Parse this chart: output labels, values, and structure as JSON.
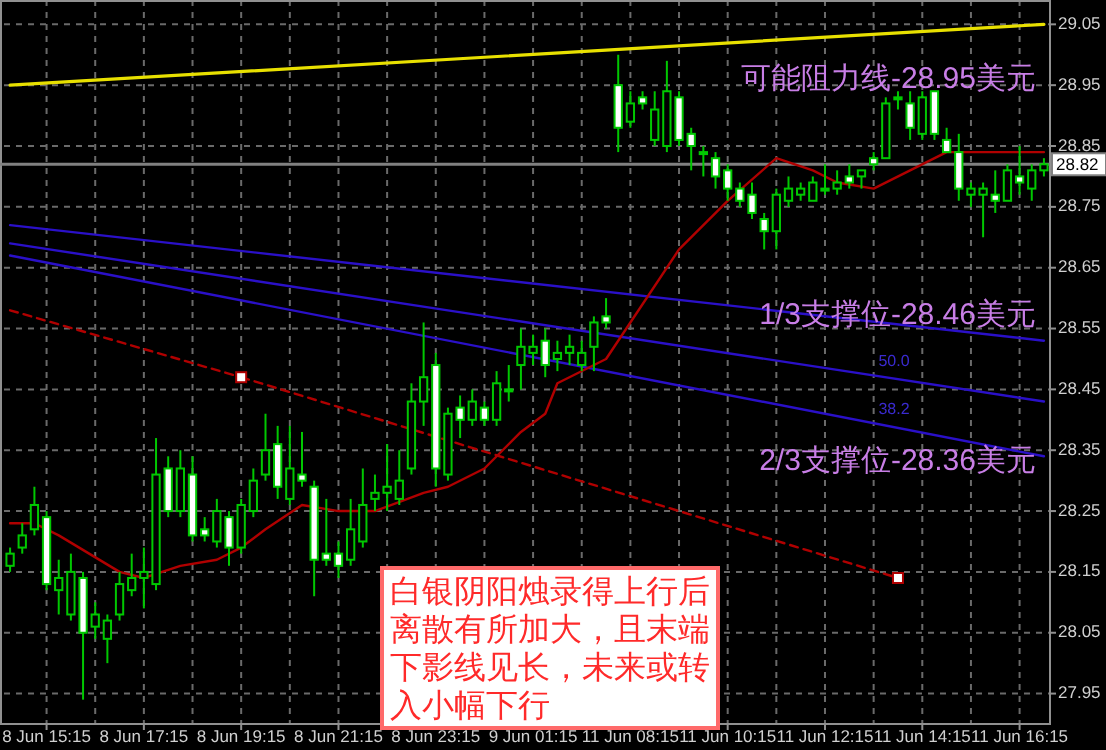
{
  "chart_data": {
    "type": "candlestick",
    "categories": [
      null,
      null,
      null,
      "8 Jun 15:15",
      null,
      null,
      null,
      null,
      null,
      null,
      null,
      "8 Jun 17:15",
      null,
      null,
      null,
      null,
      null,
      null,
      null,
      "8 Jun 19:15",
      null,
      null,
      null,
      null,
      null,
      null,
      null,
      "8 Jun 21:15",
      null,
      null,
      null,
      null,
      null,
      null,
      null,
      "8 Jun 23:15",
      null,
      null,
      null,
      null,
      null,
      null,
      null,
      "9 Jun 01:15",
      null,
      null,
      null,
      null,
      null,
      null,
      null,
      "11 Jun 08:15",
      null,
      null,
      null,
      null,
      null,
      null,
      null,
      "11 Jun 10:15",
      null,
      null,
      null,
      null,
      null,
      null,
      null,
      "11 Jun 12:15",
      null,
      null,
      null,
      null,
      null,
      null,
      null,
      "11 Jun 14:15",
      null,
      null,
      null,
      null,
      null,
      null,
      null,
      "11 Jun 16:15",
      null,
      null
    ],
    "ohlc": [
      [
        28.16,
        28.19,
        28.15,
        28.18
      ],
      [
        28.19,
        28.23,
        28.18,
        28.21
      ],
      [
        28.22,
        28.29,
        28.21,
        28.26
      ],
      [
        28.24,
        28.25,
        28.12,
        28.13
      ],
      [
        28.12,
        28.17,
        28.08,
        28.14
      ],
      [
        28.08,
        28.18,
        28.07,
        28.15
      ],
      [
        28.14,
        28.15,
        27.94,
        28.05
      ],
      [
        28.06,
        28.1,
        28.04,
        28.08
      ],
      [
        28.04,
        28.08,
        28.0,
        28.07
      ],
      [
        28.08,
        28.15,
        28.07,
        28.13
      ],
      [
        28.12,
        28.18,
        28.11,
        28.14
      ],
      [
        28.14,
        28.19,
        28.09,
        28.15
      ],
      [
        28.13,
        28.37,
        28.12,
        28.31
      ],
      [
        28.32,
        28.34,
        28.24,
        28.25
      ],
      [
        28.25,
        28.35,
        28.24,
        28.32
      ],
      [
        28.31,
        28.34,
        28.2,
        28.21
      ],
      [
        28.22,
        28.24,
        28.2,
        28.21
      ],
      [
        28.2,
        28.27,
        28.19,
        28.25
      ],
      [
        28.24,
        28.25,
        28.16,
        28.19
      ],
      [
        28.19,
        28.27,
        28.18,
        28.26
      ],
      [
        28.25,
        28.32,
        28.24,
        28.3
      ],
      [
        28.31,
        28.41,
        28.3,
        28.35
      ],
      [
        28.36,
        28.39,
        28.27,
        28.29
      ],
      [
        28.27,
        28.39,
        28.26,
        28.32
      ],
      [
        28.31,
        28.38,
        28.29,
        28.3
      ],
      [
        28.29,
        28.3,
        28.11,
        28.17
      ],
      [
        28.18,
        28.27,
        28.16,
        28.17
      ],
      [
        28.18,
        28.2,
        28.14,
        28.16
      ],
      [
        28.17,
        28.27,
        28.16,
        28.22
      ],
      [
        28.2,
        28.32,
        28.19,
        28.26
      ],
      [
        28.27,
        28.31,
        28.25,
        28.28
      ],
      [
        28.28,
        28.36,
        28.25,
        28.29
      ],
      [
        28.27,
        28.35,
        28.26,
        28.3
      ],
      [
        28.32,
        28.46,
        28.31,
        28.43
      ],
      [
        28.43,
        28.56,
        28.39,
        28.47
      ],
      [
        28.49,
        28.51,
        28.29,
        28.32
      ],
      [
        28.31,
        28.42,
        28.3,
        28.41
      ],
      [
        28.42,
        28.44,
        28.37,
        28.4
      ],
      [
        28.4,
        28.45,
        28.39,
        28.43
      ],
      [
        28.42,
        28.43,
        28.39,
        28.4
      ],
      [
        28.4,
        28.48,
        28.39,
        28.46
      ],
      [
        28.45,
        28.49,
        28.43,
        28.45
      ],
      [
        28.49,
        28.55,
        28.45,
        28.52
      ],
      [
        28.51,
        28.54,
        28.49,
        28.52
      ],
      [
        28.53,
        28.55,
        28.47,
        28.49
      ],
      [
        28.5,
        28.53,
        28.48,
        28.51
      ],
      [
        28.51,
        28.54,
        28.49,
        28.52
      ],
      [
        28.49,
        28.53,
        28.48,
        28.51
      ],
      [
        28.52,
        28.57,
        28.48,
        28.56
      ],
      [
        28.57,
        28.6,
        28.55,
        28.56
      ],
      [
        28.95,
        29.0,
        28.84,
        28.88
      ],
      [
        28.89,
        28.94,
        28.88,
        28.92
      ],
      [
        28.93,
        28.94,
        28.91,
        28.92
      ],
      [
        28.86,
        28.94,
        28.85,
        28.91
      ],
      [
        28.85,
        28.99,
        28.84,
        28.94
      ],
      [
        28.93,
        28.94,
        28.85,
        28.86
      ],
      [
        28.87,
        28.88,
        28.81,
        28.85
      ],
      [
        28.84,
        28.85,
        28.8,
        28.84
      ],
      [
        28.83,
        28.84,
        28.78,
        28.8
      ],
      [
        28.81,
        28.82,
        28.76,
        28.78
      ],
      [
        28.78,
        28.79,
        28.75,
        28.76
      ],
      [
        28.77,
        28.79,
        28.73,
        28.74
      ],
      [
        28.73,
        28.74,
        28.68,
        28.71
      ],
      [
        28.71,
        28.78,
        28.68,
        28.77
      ],
      [
        28.76,
        28.8,
        28.75,
        28.78
      ],
      [
        28.77,
        28.79,
        28.76,
        28.78
      ],
      [
        28.76,
        28.8,
        28.76,
        28.79
      ],
      [
        28.78,
        28.82,
        28.77,
        28.78
      ],
      [
        28.78,
        28.81,
        28.77,
        28.79
      ],
      [
        28.8,
        28.82,
        28.78,
        28.79
      ],
      [
        28.8,
        28.81,
        28.78,
        28.81
      ],
      [
        28.83,
        28.84,
        28.81,
        28.82
      ],
      [
        28.83,
        28.93,
        28.83,
        28.92
      ],
      [
        28.93,
        28.94,
        28.91,
        28.93
      ],
      [
        28.92,
        28.94,
        28.86,
        28.88
      ],
      [
        28.87,
        28.94,
        28.86,
        28.93
      ],
      [
        28.94,
        28.94,
        28.86,
        28.87
      ],
      [
        28.86,
        28.88,
        28.84,
        28.84
      ],
      [
        28.84,
        28.87,
        28.76,
        28.78
      ],
      [
        28.77,
        28.79,
        28.75,
        28.78
      ],
      [
        28.77,
        28.79,
        28.7,
        28.78
      ],
      [
        28.77,
        28.81,
        28.74,
        28.76
      ],
      [
        28.76,
        28.82,
        28.76,
        28.81
      ],
      [
        28.8,
        28.85,
        28.77,
        28.79
      ],
      [
        28.78,
        28.82,
        28.76,
        28.81
      ],
      [
        28.81,
        28.83,
        28.8,
        28.82
      ]
    ],
    "series": [
      {
        "type": "line",
        "color": "#e8e000",
        "values": [
          28.95,
          null,
          null,
          null,
          null,
          null,
          null,
          null,
          null,
          null,
          null,
          null,
          null,
          null,
          null,
          null,
          null,
          null,
          null,
          null,
          null,
          null,
          null,
          null,
          null,
          null,
          null,
          null,
          null,
          null,
          null,
          null,
          null,
          null,
          null,
          null,
          null,
          null,
          null,
          null,
          null,
          null,
          null,
          null,
          null,
          null,
          null,
          null,
          null,
          null,
          null,
          null,
          null,
          null,
          null,
          null,
          null,
          null,
          null,
          null,
          null,
          null,
          null,
          null,
          null,
          null,
          null,
          null,
          null,
          null,
          null,
          null,
          null,
          null,
          null,
          null,
          null,
          null,
          null,
          null,
          null,
          null,
          null,
          null,
          null,
          29.05
        ]
      },
      {
        "type": "line",
        "color": "#2a10c8",
        "values": [
          28.72,
          null,
          null,
          null,
          null,
          null,
          null,
          null,
          null,
          null,
          null,
          null,
          null,
          null,
          null,
          null,
          null,
          null,
          null,
          null,
          null,
          null,
          null,
          null,
          null,
          null,
          null,
          null,
          null,
          null,
          null,
          null,
          null,
          null,
          null,
          null,
          null,
          null,
          null,
          null,
          null,
          null,
          null,
          null,
          null,
          null,
          null,
          null,
          null,
          null,
          null,
          null,
          null,
          null,
          null,
          null,
          null,
          null,
          null,
          null,
          null,
          null,
          null,
          null,
          null,
          null,
          null,
          null,
          null,
          null,
          null,
          null,
          null,
          null,
          null,
          null,
          null,
          null,
          null,
          null,
          null,
          null,
          null,
          null,
          null,
          28.53
        ]
      },
      {
        "type": "line",
        "color": "#2a10c8",
        "values": [
          28.69,
          null,
          null,
          null,
          null,
          null,
          null,
          null,
          null,
          null,
          null,
          null,
          null,
          null,
          null,
          null,
          null,
          null,
          null,
          null,
          null,
          null,
          null,
          null,
          null,
          null,
          null,
          null,
          null,
          null,
          null,
          null,
          null,
          null,
          null,
          null,
          null,
          null,
          null,
          null,
          null,
          null,
          null,
          null,
          null,
          null,
          null,
          null,
          null,
          null,
          null,
          null,
          null,
          null,
          null,
          null,
          null,
          null,
          null,
          null,
          null,
          null,
          null,
          null,
          null,
          null,
          null,
          null,
          null,
          null,
          null,
          null,
          null,
          null,
          null,
          null,
          null,
          null,
          null,
          null,
          null,
          null,
          null,
          null,
          null,
          28.43
        ]
      },
      {
        "type": "line",
        "color": "#2a10c8",
        "values": [
          28.67,
          null,
          null,
          null,
          null,
          null,
          null,
          null,
          null,
          null,
          null,
          null,
          null,
          null,
          null,
          null,
          null,
          null,
          null,
          null,
          null,
          null,
          null,
          null,
          null,
          null,
          null,
          null,
          null,
          null,
          null,
          null,
          null,
          null,
          null,
          null,
          null,
          null,
          null,
          null,
          null,
          null,
          null,
          null,
          null,
          null,
          null,
          null,
          null,
          null,
          null,
          null,
          null,
          null,
          null,
          null,
          null,
          null,
          null,
          null,
          null,
          null,
          null,
          null,
          null,
          null,
          null,
          null,
          null,
          null,
          null,
          null,
          null,
          null,
          null,
          null,
          null,
          null,
          null,
          null,
          null,
          null,
          null,
          null,
          null,
          28.34
        ]
      },
      {
        "type": "line",
        "color": "#b00000",
        "line_style": "dashed",
        "values": [
          28.58,
          null,
          null,
          null,
          null,
          null,
          null,
          null,
          null,
          null,
          null,
          null,
          null,
          null,
          null,
          null,
          null,
          null,
          null,
          28.47,
          null,
          null,
          null,
          null,
          null,
          null,
          null,
          null,
          null,
          null,
          null,
          null,
          null,
          null,
          null,
          null,
          null,
          null,
          null,
          null,
          null,
          null,
          null,
          null,
          null,
          null,
          null,
          null,
          null,
          null,
          null,
          null,
          null,
          null,
          null,
          null,
          null,
          null,
          null,
          null,
          null,
          null,
          null,
          null,
          null,
          null,
          null,
          null,
          null,
          null,
          null,
          null,
          null,
          null,
          null,
          null,
          null,
          null,
          null,
          null,
          null,
          null,
          null,
          null,
          null,
          null
        ]
      },
      {
        "type": "line",
        "color": "#b00000",
        "line_style": "dashed",
        "marker": "square",
        "values": [
          null,
          null,
          null,
          null,
          null,
          null,
          null,
          null,
          null,
          null,
          null,
          null,
          null,
          null,
          null,
          null,
          null,
          null,
          null,
          28.47,
          null,
          null,
          null,
          null,
          null,
          null,
          null,
          null,
          null,
          null,
          null,
          null,
          null,
          null,
          null,
          null,
          null,
          null,
          null,
          null,
          null,
          null,
          null,
          null,
          null,
          null,
          null,
          null,
          null,
          null,
          null,
          null,
          null,
          null,
          null,
          null,
          null,
          null,
          null,
          null,
          null,
          null,
          null,
          null,
          null,
          null,
          null,
          null,
          null,
          null,
          null,
          null,
          null,
          28.14,
          null,
          null,
          null,
          null,
          null,
          null,
          null,
          null,
          null,
          null,
          null,
          null
        ]
      },
      {
        "type": "line",
        "color": "#b00000",
        "values": [
          28.23,
          null,
          28.23,
          null,
          28.21,
          null,
          null,
          null,
          null,
          28.15,
          null,
          28.14,
          null,
          null,
          28.16,
          null,
          null,
          28.17,
          null,
          28.19,
          null,
          28.22,
          null,
          null,
          28.26,
          null,
          null,
          28.25,
          null,
          null,
          28.25,
          null,
          null,
          null,
          28.28,
          null,
          28.29,
          null,
          null,
          28.32,
          null,
          null,
          28.38,
          null,
          28.41,
          28.46,
          null,
          null,
          null,
          28.5,
          null,
          28.56,
          null,
          null,
          null,
          28.68,
          null,
          null,
          null,
          28.76,
          null,
          null,
          null,
          28.83,
          null,
          null,
          28.81,
          null,
          28.79,
          null,
          null,
          28.78,
          null,
          null,
          28.81,
          null,
          null,
          28.84,
          null,
          28.84,
          null,
          null,
          null,
          null,
          null,
          28.84
        ]
      }
    ],
    "ylim": [
      27.9,
      29.09
    ],
    "yticks": [
      27.95,
      28.05,
      28.15,
      28.25,
      28.35,
      28.45,
      28.55,
      28.65,
      28.75,
      28.85,
      28.95,
      29.05
    ],
    "grid": true,
    "ref_lines": [
      {
        "axis": "y",
        "value": 28.82,
        "label": "28.82",
        "color": "#808080"
      }
    ],
    "annotations": [
      "可能阻力线-28.95美元",
      "1/3支撑位-28.46美元",
      "2/3支撑位-28.36美元",
      "50.0",
      "38.2",
      "白银阴阳烛录得上行后离散有所加大，且末端下影线见长，未来或转入小幅下行"
    ]
  }
}
